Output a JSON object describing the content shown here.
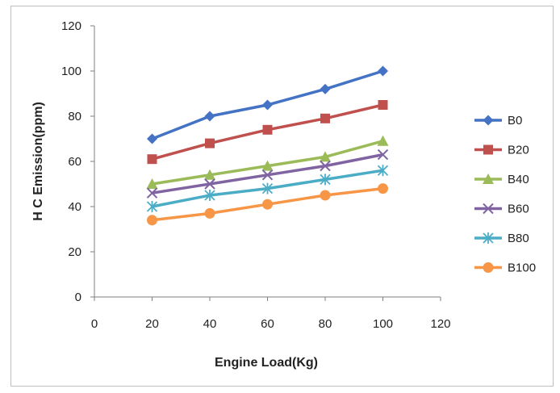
{
  "chart_data": {
    "type": "line",
    "title": "",
    "xlabel": "Engine Load(Kg)",
    "ylabel": "H C Emission(ppm)",
    "xlim": [
      0,
      120
    ],
    "ylim": [
      0,
      120
    ],
    "xticks": [
      0,
      20,
      40,
      60,
      80,
      100,
      120
    ],
    "yticks": [
      0,
      20,
      40,
      60,
      80,
      100,
      120
    ],
    "grid": false,
    "legend_position": "right",
    "x": [
      20,
      40,
      60,
      80,
      100
    ],
    "series": [
      {
        "name": "B0",
        "values": [
          70,
          80,
          85,
          92,
          100
        ],
        "color": "#4472C4",
        "marker": "diamond"
      },
      {
        "name": "B20",
        "values": [
          61,
          68,
          74,
          79,
          85
        ],
        "color": "#C0504D",
        "marker": "square"
      },
      {
        "name": "B40",
        "values": [
          50,
          54,
          58,
          62,
          69
        ],
        "color": "#9BBB59",
        "marker": "triangle"
      },
      {
        "name": "B60",
        "values": [
          46,
          50,
          54,
          58,
          63
        ],
        "color": "#8064A2",
        "marker": "x"
      },
      {
        "name": "B80",
        "values": [
          40,
          45,
          48,
          52,
          56
        ],
        "color": "#4BACC6",
        "marker": "star"
      },
      {
        "name": "B100",
        "values": [
          34,
          37,
          41,
          45,
          48
        ],
        "color": "#F79646",
        "marker": "circle"
      }
    ]
  }
}
